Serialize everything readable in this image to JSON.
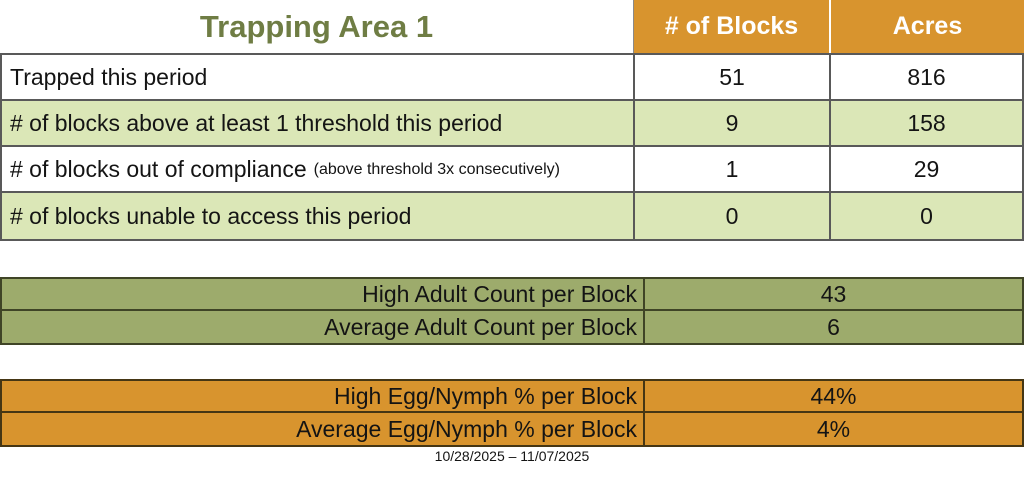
{
  "title": "Trapping Area 1",
  "colors": {
    "orange": "#d8942e",
    "light-green": "#dbe7b7",
    "olive": "#9dab6c",
    "title-green": "#6f7d44",
    "header-text": "#ffffff"
  },
  "main_table": {
    "headers": [
      "# of Blocks",
      "Acres"
    ],
    "rows": [
      {
        "label": "Trapped this period",
        "blocks": "51",
        "acres": "816"
      },
      {
        "label": "# of blocks above at least 1 threshold this period",
        "blocks": "9",
        "acres": "158"
      },
      {
        "label": "# of blocks out of compliance",
        "note": "(above threshold 3x consecutively)",
        "blocks": "1",
        "acres": "29"
      },
      {
        "label": "# of blocks unable to access this period",
        "blocks": "0",
        "acres": "0"
      }
    ]
  },
  "adult_counts": {
    "rows": [
      {
        "label": "High Adult Count per Block",
        "value": "43"
      },
      {
        "label": "Average Adult Count per Block",
        "value": "6"
      }
    ]
  },
  "egg_nymph": {
    "rows": [
      {
        "label": "High Egg/Nymph % per Block",
        "value": "44%"
      },
      {
        "label": "Average Egg/Nymph % per Block",
        "value": "4%"
      }
    ]
  },
  "footer": {
    "date_range": "10/28/2025 – 11/07/2025"
  }
}
